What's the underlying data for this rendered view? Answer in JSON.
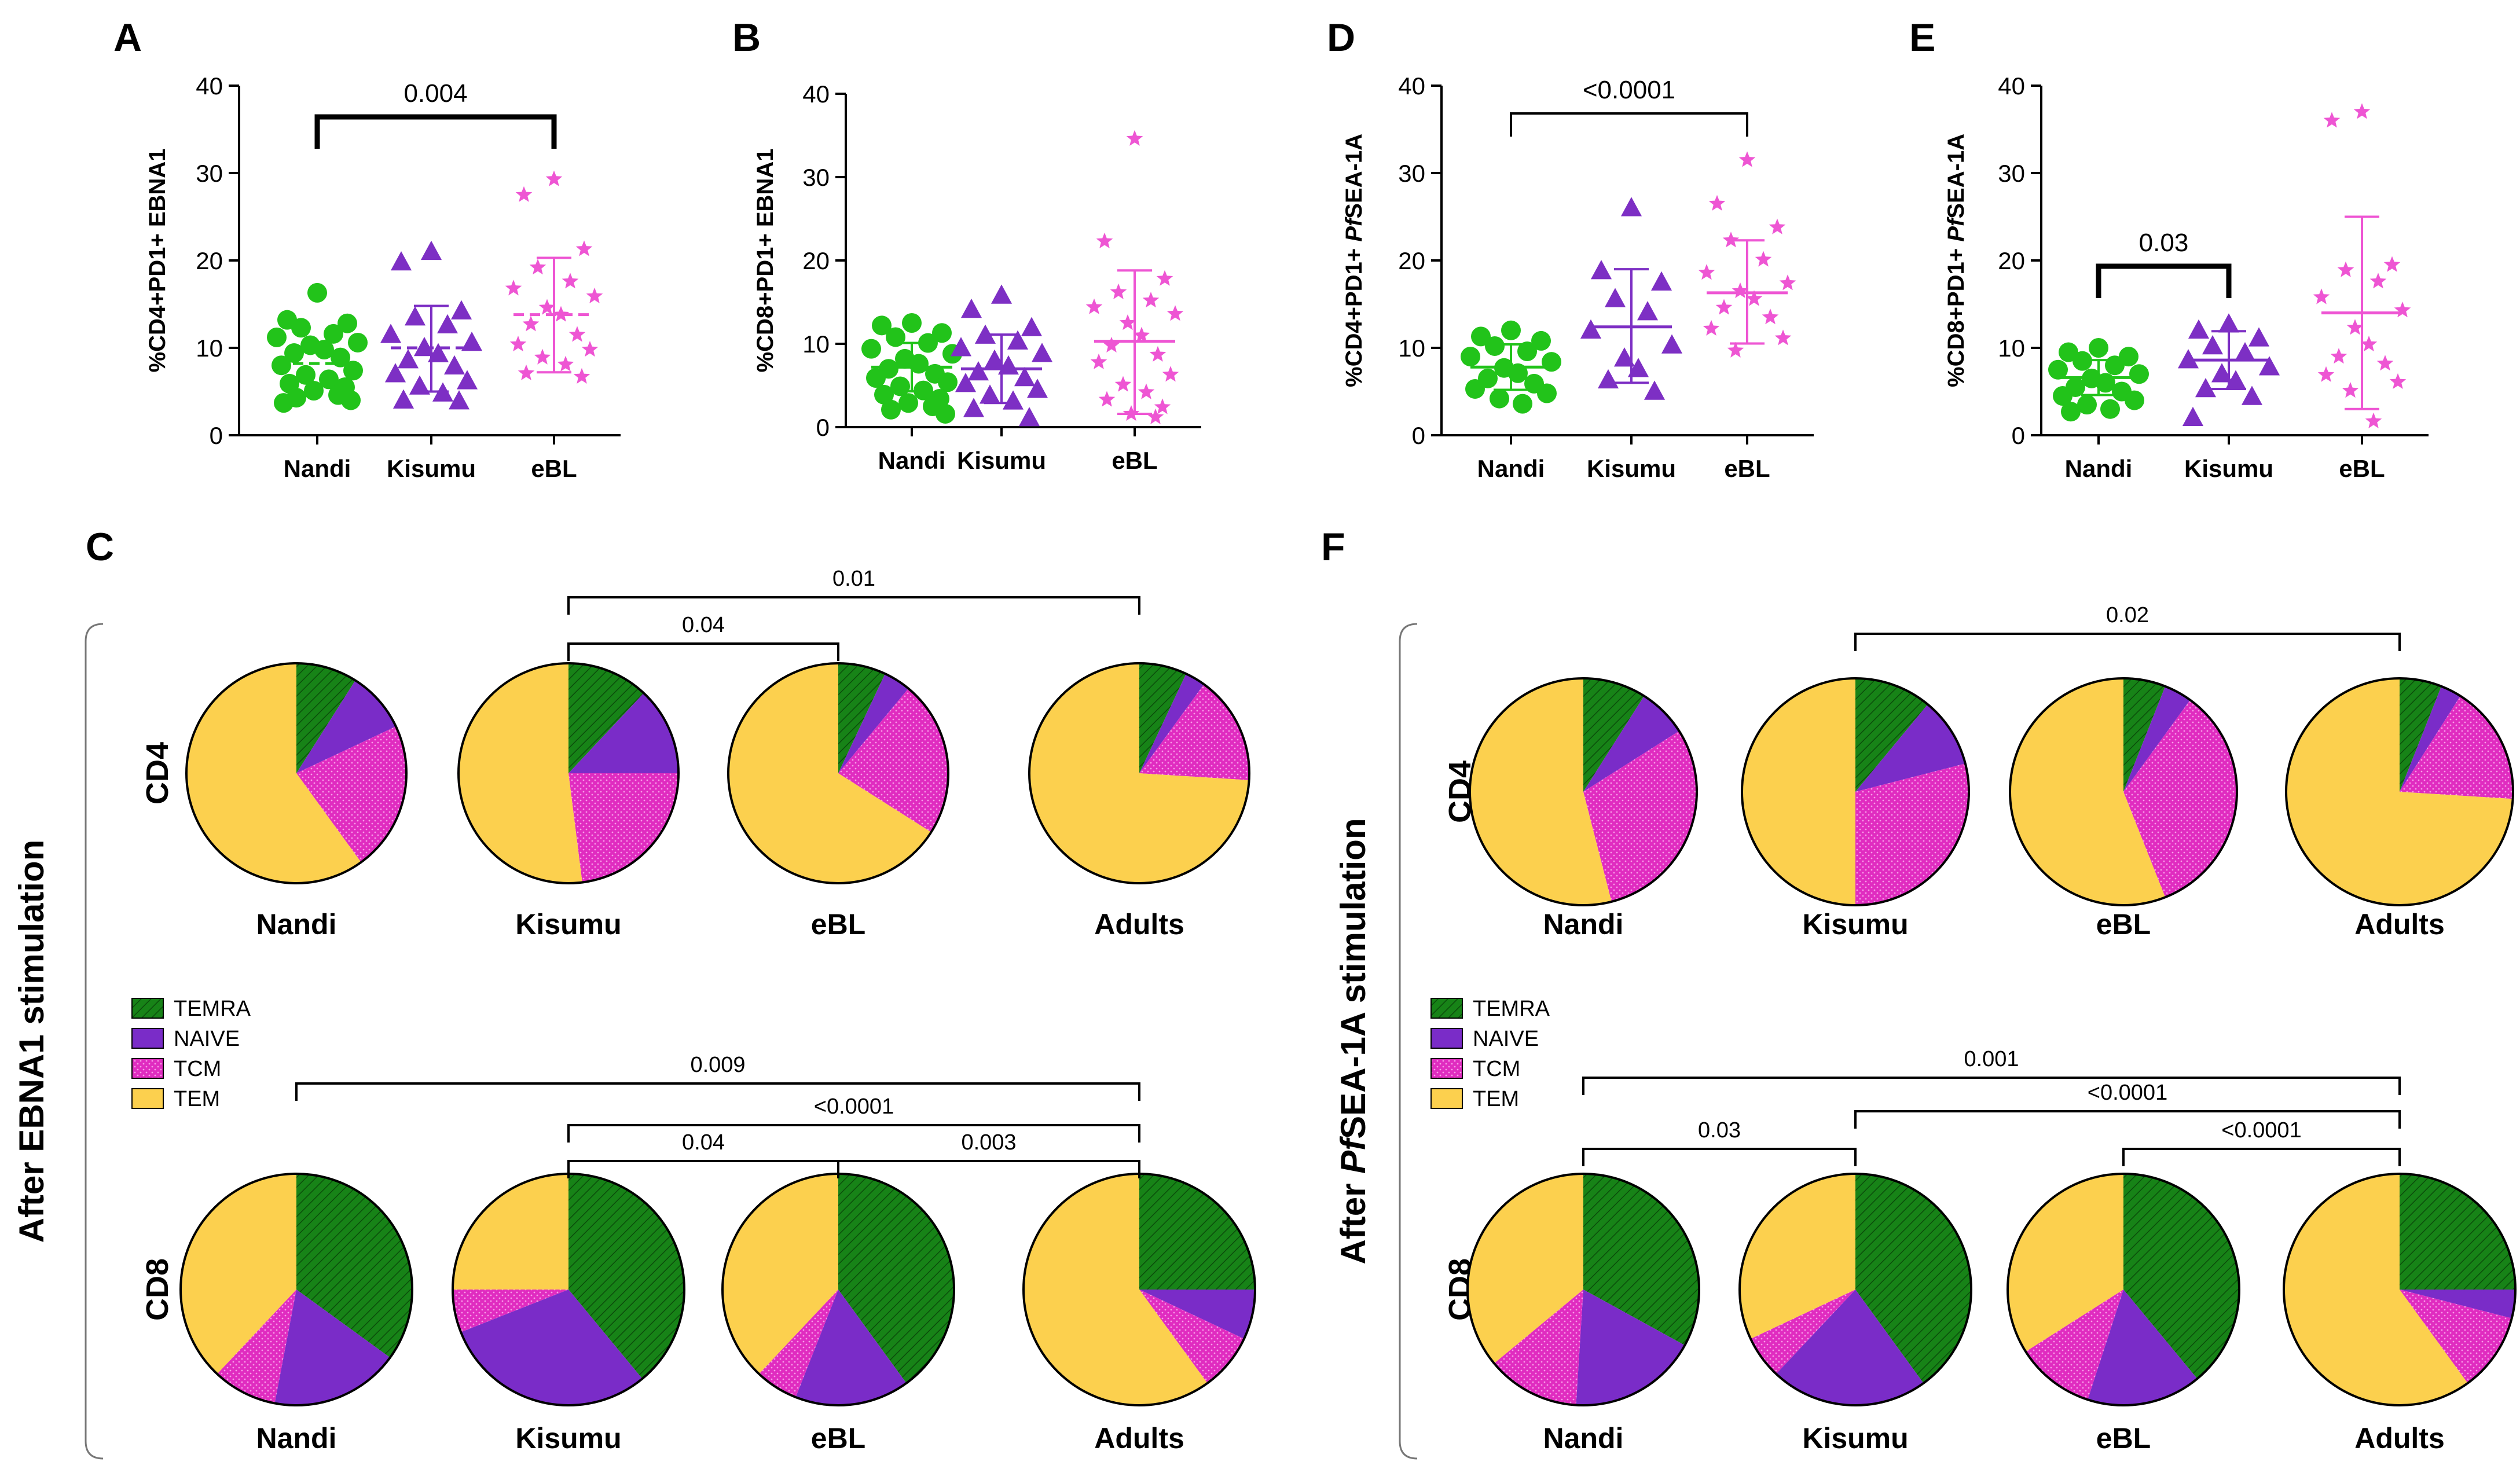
{
  "colors": {
    "nandi": "#22c31a",
    "kisumu": "#7d2fc4",
    "ebl": "#ee55d3",
    "temra": "#178317",
    "naive": "#7a2cc8",
    "tcm": "#e02cc0",
    "tem": "#fcd04e",
    "bracket": "#000000"
  },
  "chart_data": [
    {
      "id": "A",
      "type": "scatter",
      "panel_letter": "A",
      "ylabel": "%CD4+PD1+ EBNA1",
      "ylim": [
        0,
        40
      ],
      "yticks": [
        "0",
        "10",
        "20",
        "30",
        "40"
      ],
      "categories": [
        "Nandi",
        "Kisumu",
        "eBL"
      ],
      "markers": [
        "circle",
        "triangle",
        "star"
      ],
      "center_line": "median",
      "series": [
        {
          "name": "Nandi",
          "center": 8.2,
          "values": [
            16.3,
            13.2,
            12.8,
            12.3,
            11.6,
            11.2,
            10.6,
            10.3,
            9.8,
            9.4,
            8.9,
            8.0,
            7.4,
            6.9,
            6.4,
            5.9,
            5.5,
            5.1,
            4.6,
            4.3,
            4.0,
            3.7
          ]
        },
        {
          "name": "Kisumu",
          "center": 10.0,
          "sd": [
            5.0,
            14.8
          ],
          "values": [
            21.0,
            19.8,
            14.2,
            13.5,
            12.6,
            11.5,
            10.6,
            10.0,
            9.3,
            8.6,
            7.9,
            7.0,
            6.2,
            5.6,
            4.8,
            4.0,
            3.9
          ]
        },
        {
          "name": "eBL",
          "center": 13.8,
          "sd": [
            7.2,
            20.3
          ],
          "values": [
            29.3,
            27.5,
            21.3,
            19.2,
            17.6,
            16.8,
            15.9,
            14.6,
            13.8,
            12.7,
            11.5,
            10.4,
            9.8,
            8.9,
            8.1,
            7.1,
            6.7
          ]
        }
      ],
      "comparisons": [
        {
          "from": "Nandi",
          "to": "eBL",
          "label": "0.004"
        }
      ],
      "bold_bracket": true
    },
    {
      "id": "B",
      "type": "scatter",
      "panel_letter": "B",
      "ylabel": "%CD8+PD1+ EBNA1",
      "ylim": [
        0,
        40
      ],
      "yticks": [
        "0",
        "10",
        "20",
        "30",
        "40"
      ],
      "categories": [
        "Nandi",
        "Kisumu",
        "eBL"
      ],
      "markers": [
        "circle",
        "triangle",
        "star"
      ],
      "center_line": "mean",
      "series": [
        {
          "name": "Nandi",
          "center": 7.2,
          "sd": [
            4.3,
            10.1
          ],
          "values": [
            12.5,
            12.2,
            11.3,
            10.8,
            10.1,
            9.4,
            8.8,
            8.2,
            7.6,
            7.0,
            6.4,
            5.9,
            5.4,
            4.9,
            4.4,
            3.9,
            3.4,
            2.9,
            2.5,
            2.1,
            1.6
          ]
        },
        {
          "name": "Kisumu",
          "center": 7.0,
          "sd": [
            2.9,
            11.1
          ],
          "values": [
            15.8,
            14.1,
            11.9,
            11.0,
            10.3,
            9.5,
            8.8,
            8.0,
            7.3,
            6.6,
            5.9,
            5.2,
            4.5,
            3.8,
            3.1,
            2.2,
            1.1
          ]
        },
        {
          "name": "eBL",
          "center": 10.3,
          "sd": [
            1.6,
            18.8
          ],
          "values": [
            34.6,
            22.3,
            17.8,
            16.2,
            15.2,
            14.4,
            13.6,
            12.5,
            11.0,
            9.8,
            8.7,
            7.8,
            6.3,
            5.1,
            4.2,
            3.3,
            2.4,
            1.6,
            1.2
          ]
        }
      ],
      "comparisons": [],
      "bold_bracket": false
    },
    {
      "id": "D",
      "type": "scatter",
      "panel_letter": "D",
      "ylabel_prefix": "%CD4+PD1+ ",
      "ylabel_italic": "Pf",
      "ylabel_suffix": "SEA-1A",
      "ylim": [
        0,
        40
      ],
      "yticks": [
        "0",
        "10",
        "20",
        "30",
        "40"
      ],
      "categories": [
        "Nandi",
        "Kisumu",
        "eBL"
      ],
      "markers": [
        "circle",
        "triangle",
        "star"
      ],
      "center_line": "mean",
      "series": [
        {
          "name": "Nandi",
          "center": 7.8,
          "sd": [
            5.2,
            10.4
          ],
          "values": [
            12.0,
            11.3,
            10.8,
            10.2,
            9.6,
            9.0,
            8.4,
            7.7,
            7.1,
            6.5,
            5.9,
            5.3,
            4.8,
            4.2,
            3.6
          ]
        },
        {
          "name": "Kisumu",
          "center": 12.4,
          "sd": [
            6.0,
            19.0
          ],
          "values": [
            26.0,
            18.8,
            17.5,
            15.6,
            14.1,
            12.0,
            10.3,
            8.8,
            7.6,
            6.3,
            5.0
          ]
        },
        {
          "name": "eBL",
          "center": 16.3,
          "sd": [
            10.5,
            22.3
          ],
          "values": [
            31.5,
            26.5,
            23.8,
            22.3,
            20.1,
            18.6,
            17.4,
            16.5,
            15.6,
            14.6,
            13.5,
            12.2,
            11.1,
            9.7
          ]
        }
      ],
      "comparisons": [
        {
          "from": "Nandi",
          "to": "eBL",
          "label": "<0.0001"
        }
      ],
      "bold_bracket": false
    },
    {
      "id": "E",
      "type": "scatter",
      "panel_letter": "E",
      "ylabel_prefix": "%CD8+PD1+ ",
      "ylabel_italic": "Pf",
      "ylabel_suffix": "SEA-1A",
      "ylim": [
        0,
        40
      ],
      "yticks": [
        "0",
        "10",
        "20",
        "30",
        "40"
      ],
      "categories": [
        "Nandi",
        "Kisumu",
        "eBL"
      ],
      "markers": [
        "circle",
        "triangle",
        "star"
      ],
      "center_line": "mean",
      "series": [
        {
          "name": "Nandi",
          "center": 6.6,
          "sd": [
            4.6,
            8.6
          ],
          "values": [
            10.0,
            9.5,
            9.0,
            8.5,
            8.0,
            7.5,
            7.0,
            6.5,
            6.0,
            5.5,
            5.0,
            4.5,
            4.0,
            3.5,
            3.0,
            2.7
          ]
        },
        {
          "name": "Kisumu",
          "center": 8.6,
          "sd": [
            5.3,
            11.9
          ],
          "values": [
            12.7,
            12.0,
            11.1,
            10.2,
            9.4,
            8.6,
            7.8,
            7.0,
            6.2,
            5.3,
            4.4,
            2.0
          ]
        },
        {
          "name": "eBL",
          "center": 14.0,
          "sd": [
            3.0,
            25.0
          ],
          "values": [
            37.0,
            36.0,
            19.5,
            18.9,
            17.6,
            15.8,
            14.3,
            12.3,
            10.4,
            9.0,
            8.2,
            6.9,
            6.1,
            5.1,
            1.6
          ]
        }
      ],
      "comparisons": [
        {
          "from": "Nandi",
          "to": "Kisumu",
          "label": "0.03"
        }
      ],
      "bold_bracket": true
    },
    {
      "id": "C",
      "type": "pie",
      "panel_letter": "C",
      "side_title": "After EBNA1 stimulation",
      "category_order": [
        "TEMRA",
        "NAIVE",
        "TCM",
        "TEM"
      ],
      "groups": [
        "Nandi",
        "Kisumu",
        "eBL",
        "Adults"
      ],
      "rows": [
        {
          "name": "CD4",
          "slices": {
            "Nandi": [
              9,
              9,
              22,
              60
            ],
            "Kisumu": [
              12,
              13,
              23,
              52
            ],
            "eBL": [
              7,
              4,
              23,
              66
            ],
            "Adults": [
              7,
              3,
              16,
              74
            ]
          },
          "comparisons": [
            {
              "from": "Kisumu",
              "to": "eBL",
              "label": "0.04"
            },
            {
              "from": "Kisumu",
              "to": "Adults",
              "label": "0.01"
            }
          ]
        },
        {
          "name": "CD8",
          "slices": {
            "Nandi": [
              35,
              18,
              9,
              38
            ],
            "Kisumu": [
              39,
              30,
              6,
              25
            ],
            "eBL": [
              40,
              16,
              6,
              38
            ],
            "Adults": [
              25,
              7,
              8,
              60
            ]
          },
          "comparisons": [
            {
              "from": "Nandi",
              "to": "Adults",
              "label": "0.009"
            },
            {
              "from": "Kisumu",
              "to": "Adults",
              "label": "<0.0001"
            },
            {
              "from": "Kisumu",
              "to": "eBL",
              "label": "0.04"
            },
            {
              "from": "eBL",
              "to": "Adults",
              "label": "0.003"
            }
          ]
        }
      ]
    },
    {
      "id": "F",
      "type": "pie",
      "panel_letter": "F",
      "side_title_prefix": "After ",
      "side_title_italic": "Pf",
      "side_title_suffix": "SEA-1A stimulation",
      "category_order": [
        "TEMRA",
        "NAIVE",
        "TCM",
        "TEM"
      ],
      "groups": [
        "Nandi",
        "Kisumu",
        "eBL",
        "Adults"
      ],
      "rows": [
        {
          "name": "CD4",
          "slices": {
            "Nandi": [
              9,
              7,
              30,
              54
            ],
            "Kisumu": [
              11,
              10,
              29,
              50
            ],
            "eBL": [
              6,
              4,
              34,
              56
            ],
            "Adults": [
              6,
              3,
              17,
              74
            ]
          },
          "comparisons": [
            {
              "from": "Kisumu",
              "to": "Adults",
              "label": "0.02"
            }
          ]
        },
        {
          "name": "CD8",
          "slices": {
            "Nandi": [
              33,
              18,
              13,
              36
            ],
            "Kisumu": [
              40,
              22,
              6,
              32
            ],
            "eBL": [
              39,
              16,
              11,
              34
            ],
            "Adults": [
              25,
              4,
              11,
              60
            ]
          },
          "comparisons": [
            {
              "from": "Nandi",
              "to": "Adults",
              "label": "0.001"
            },
            {
              "from": "Kisumu",
              "to": "Adults",
              "label": "<0.0001"
            },
            {
              "from": "Nandi",
              "to": "Kisumu",
              "label": "0.03"
            },
            {
              "from": "eBL",
              "to": "Adults",
              "label": "<0.0001"
            }
          ]
        }
      ]
    }
  ],
  "legend": {
    "items": [
      {
        "label": "TEMRA",
        "key": "temra"
      },
      {
        "label": "NAIVE",
        "key": "naive"
      },
      {
        "label": "TCM",
        "key": "tcm"
      },
      {
        "label": "TEM",
        "key": "tem"
      }
    ]
  }
}
